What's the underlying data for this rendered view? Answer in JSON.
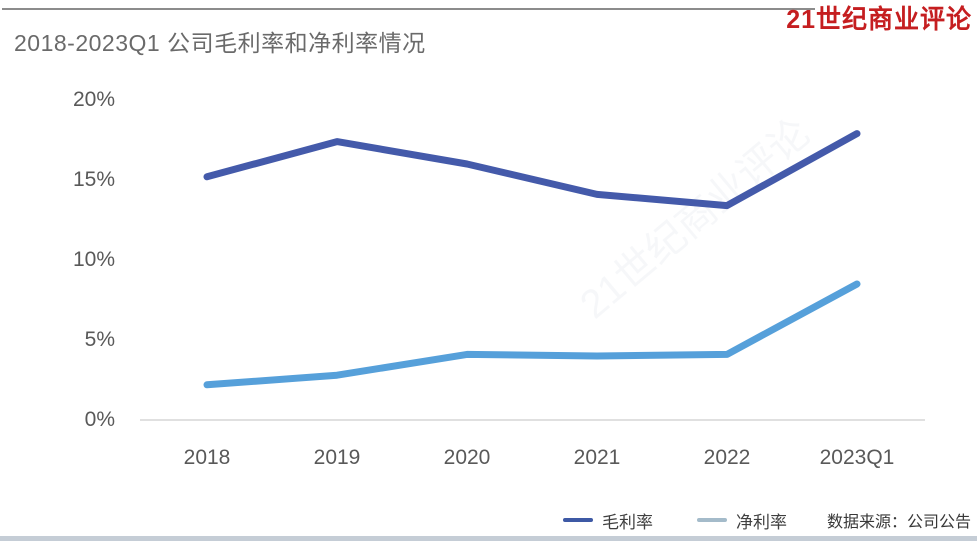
{
  "header": {
    "title": "2018-2023Q1 公司毛利率和净利率情况",
    "logo": "21世纪商业评论"
  },
  "watermark": "21世纪商业评论",
  "footer": {
    "source": "数据来源：公司公告"
  },
  "colors": {
    "gross_line": "#445aaa",
    "net_line": "#56a0da",
    "gross_legend_swatch": "#3e59a5",
    "net_legend_swatch": "#a4bbca",
    "logo_red": "#c51e20",
    "top_rule": "#8c8c8c",
    "bottom_bar": "#c5cdd6",
    "axis_line": "#d6d6d6"
  },
  "chart_data": {
    "type": "line",
    "title": "2018-2023Q1 公司毛利率和净利率情况",
    "categories": [
      "2018",
      "2019",
      "2020",
      "2021",
      "2022",
      "2023Q1"
    ],
    "series": [
      {
        "name": "毛利率",
        "values": [
          15.2,
          17.4,
          16.0,
          14.1,
          13.4,
          17.9
        ],
        "color": "#445aaa",
        "legend_color": "#3e59a5"
      },
      {
        "name": "净利率",
        "values": [
          2.2,
          2.8,
          4.1,
          4.0,
          4.1,
          8.5
        ],
        "color": "#56a0da",
        "legend_color": "#a4bbca"
      }
    ],
    "yticks": [
      {
        "label": "0%",
        "value": 0
      },
      {
        "label": "5%",
        "value": 5
      },
      {
        "label": "10%",
        "value": 10
      },
      {
        "label": "15%",
        "value": 15
      },
      {
        "label": "20%",
        "value": 20
      }
    ],
    "ylim": [
      0,
      20
    ],
    "unit": "%",
    "grid": false,
    "legend_position": "bottom-right"
  }
}
